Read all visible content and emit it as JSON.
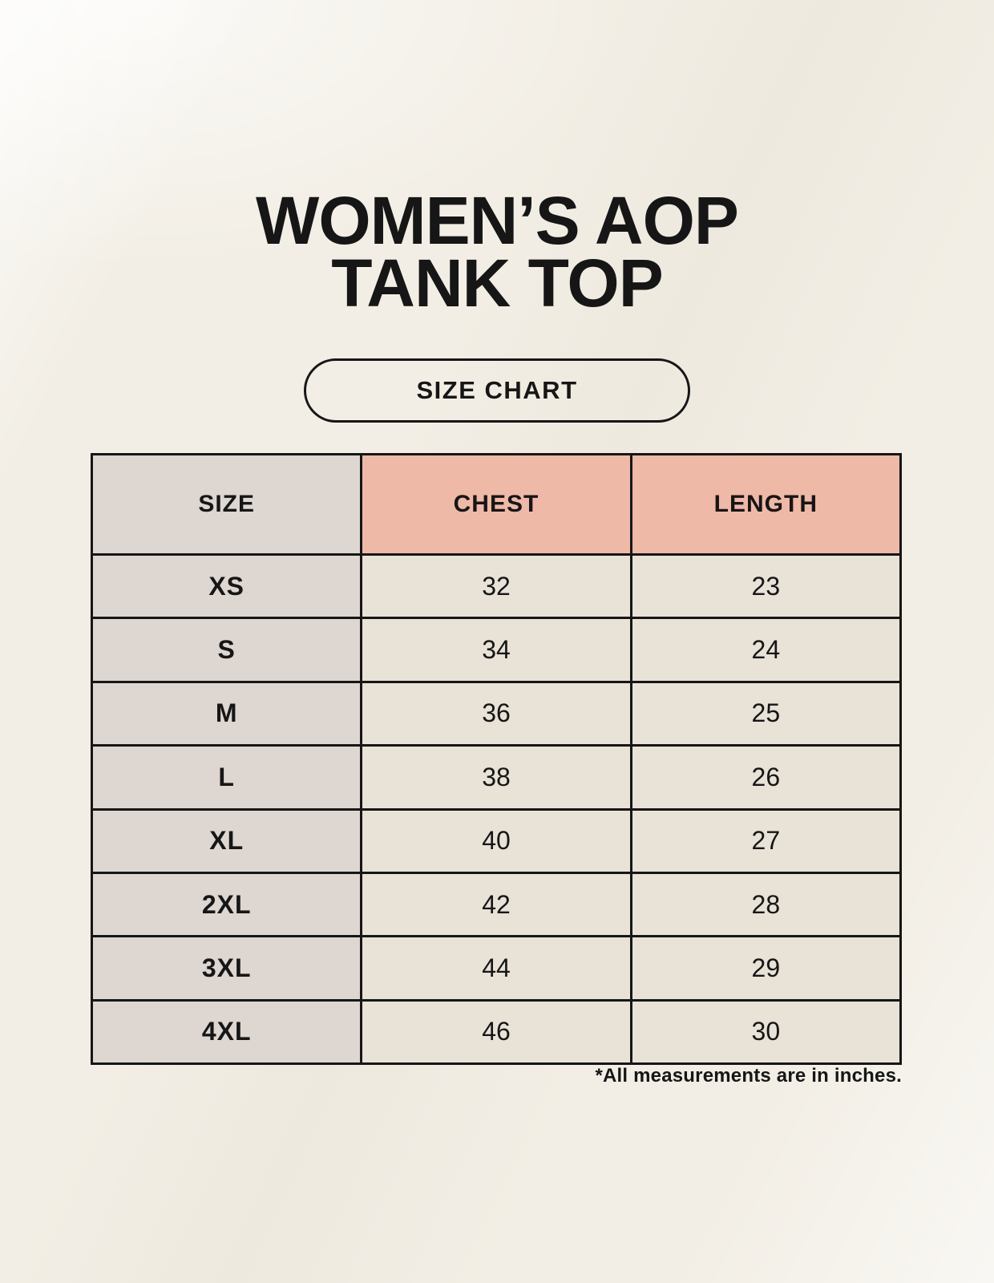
{
  "header": {
    "title_line1": "WOMEN’S AOP",
    "title_line2": "TANK TOP",
    "badge_label": "SIZE CHART"
  },
  "footnote": "*All measurements are in inches.",
  "colors": {
    "background": "#f2eee5",
    "size_column_bg": "#ddd6d1",
    "accent_header_bg": "#efb9a7",
    "cell_bg": "#e8e2d7",
    "border": "#161616",
    "text": "#161616"
  },
  "chart_data": {
    "type": "table",
    "title": "WOMEN’S AOP TANK TOP — SIZE CHART",
    "units": "inches",
    "columns": [
      "SIZE",
      "CHEST",
      "LENGTH"
    ],
    "rows": [
      {
        "size": "XS",
        "chest": "32",
        "length": "23"
      },
      {
        "size": "S",
        "chest": "34",
        "length": "24"
      },
      {
        "size": "M",
        "chest": "36",
        "length": "25"
      },
      {
        "size": "L",
        "chest": "38",
        "length": "26"
      },
      {
        "size": "XL",
        "chest": "40",
        "length": "27"
      },
      {
        "size": "2XL",
        "chest": "42",
        "length": "28"
      },
      {
        "size": "3XL",
        "chest": "44",
        "length": "29"
      },
      {
        "size": "4XL",
        "chest": "46",
        "length": "30"
      }
    ]
  }
}
